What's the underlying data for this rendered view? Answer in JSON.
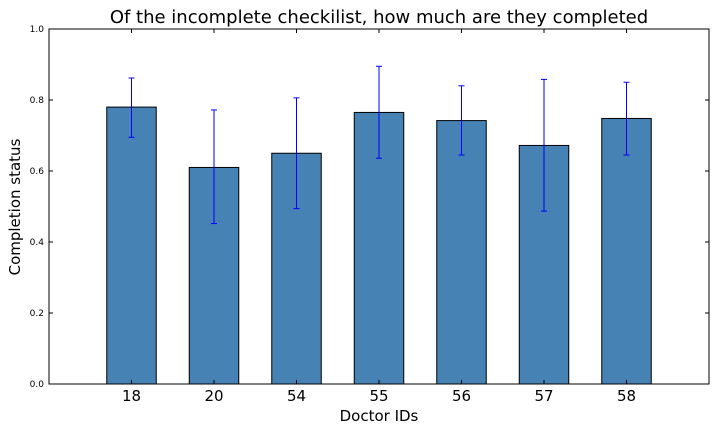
{
  "chart_data": {
    "type": "bar",
    "title": "Of the incomplete checkilist, how much are they completed",
    "xlabel": "Doctor IDs",
    "ylabel": "Completion status",
    "categories": [
      "18",
      "20",
      "54",
      "55",
      "56",
      "57",
      "58"
    ],
    "values": [
      0.78,
      0.61,
      0.65,
      0.765,
      0.742,
      0.672,
      0.748
    ],
    "error_low": [
      0.695,
      0.452,
      0.494,
      0.636,
      0.645,
      0.487,
      0.645
    ],
    "error_high": [
      0.862,
      0.772,
      0.806,
      0.895,
      0.84,
      0.858,
      0.85
    ],
    "ylim": [
      0,
      1.0
    ],
    "yticks": [
      "0.0",
      "0.2",
      "0.4",
      "0.6",
      "0.8",
      "1.0"
    ],
    "ytick_values": [
      0,
      0.2,
      0.4,
      0.6,
      0.8,
      1.0
    ],
    "grid": false,
    "colors": {
      "bar": "#4682b4",
      "bar_edge": "#000000",
      "error": "#0000ff",
      "axes": "#000000"
    }
  }
}
